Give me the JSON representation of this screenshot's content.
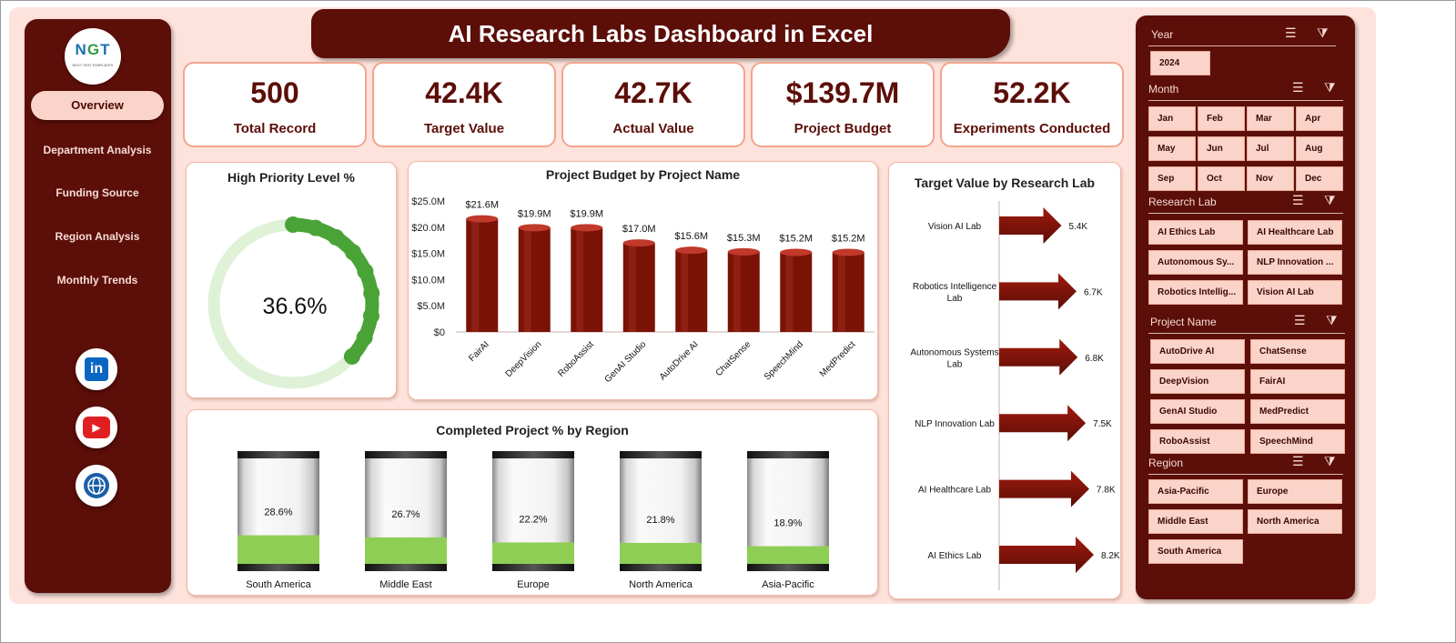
{
  "title": "AI Research Labs Dashboard in Excel",
  "logo": {
    "text_a": "N",
    "text_b": "G",
    "text_c": "T",
    "subtitle": "NEXT GEN TEMPLATES"
  },
  "nav": {
    "items": [
      {
        "label": "Overview",
        "active": true
      },
      {
        "label": "Department Analysis"
      },
      {
        "label": "Funding Source"
      },
      {
        "label": "Region Analysis"
      },
      {
        "label": "Monthly Trends"
      }
    ],
    "social": [
      {
        "name": "linkedin-icon",
        "glyph": "in",
        "color": "#0a66c2"
      },
      {
        "name": "youtube-icon",
        "glyph": "▶",
        "color": "#e02020"
      },
      {
        "name": "website-icon",
        "glyph": "🌐",
        "color": "#1a5fa8"
      }
    ]
  },
  "kpis": [
    {
      "value": "500",
      "label": "Total Record"
    },
    {
      "value": "42.4K",
      "label": "Target Value"
    },
    {
      "value": "42.7K",
      "label": "Actual Value"
    },
    {
      "value": "$139.7M",
      "label": "Project Budget"
    },
    {
      "value": "52.2K",
      "label": "Experiments Conducted"
    }
  ],
  "donut": {
    "title": "High Priority Level %",
    "value_label": "36.6%",
    "fraction": 0.366
  },
  "chart_data": [
    {
      "type": "bar",
      "title": "Project Budget by Project Name",
      "categories": [
        "FairAI",
        "DeepVision",
        "RoboAssist",
        "GenAI Studio",
        "AutoDrive AI",
        "ChatSense",
        "SpeechMind",
        "MedPredict"
      ],
      "values": [
        21.6,
        19.9,
        19.9,
        17.0,
        15.6,
        15.3,
        15.2,
        15.2
      ],
      "data_labels": [
        "$21.6M",
        "$19.9M",
        "$19.9M",
        "$17.0M",
        "$15.6M",
        "$15.3M",
        "$15.2M",
        "$15.2M"
      ],
      "ylim": [
        0,
        25
      ],
      "yticks": [
        "$0",
        "$5.0M",
        "$10.0M",
        "$15.0M",
        "$20.0M",
        "$25.0M"
      ],
      "ylabel": "",
      "xlabel": ""
    },
    {
      "type": "bar",
      "orientation": "horizontal",
      "title": "Target Value by Research Lab",
      "categories": [
        "Vision AI Lab",
        "Robotics Intelligence Lab",
        "Autonomous Systems Lab",
        "NLP Innovation Lab",
        "AI Healthcare Lab",
        "AI Ethics Lab"
      ],
      "category_lines": [
        [
          "Vision AI Lab"
        ],
        [
          "Robotics Intelligence",
          "Lab"
        ],
        [
          "Autonomous Systems",
          "Lab"
        ],
        [
          "NLP Innovation Lab"
        ],
        [
          "AI Healthcare Lab"
        ],
        [
          "AI Ethics Lab"
        ]
      ],
      "values": [
        5.4,
        6.7,
        6.8,
        7.5,
        7.8,
        8.2
      ],
      "data_labels": [
        "5.4K",
        "6.7K",
        "6.8K",
        "7.5K",
        "7.8K",
        "8.2K"
      ],
      "xlim": [
        0,
        8.2
      ]
    },
    {
      "type": "bar",
      "title": "Completed Project % by Region",
      "categories": [
        "South America",
        "Middle East",
        "Europe",
        "North America",
        "Asia-Pacific"
      ],
      "values": [
        28.6,
        26.7,
        22.2,
        21.8,
        18.9
      ],
      "data_labels": [
        "28.6%",
        "26.7%",
        "22.2%",
        "21.8%",
        "18.9%"
      ],
      "ylim": [
        0,
        100
      ]
    }
  ],
  "slicers": {
    "year": {
      "title": "Year",
      "items": [
        "2024"
      ]
    },
    "month": {
      "title": "Month",
      "items": [
        "Jan",
        "Feb",
        "Mar",
        "Apr",
        "May",
        "Jun",
        "Jul",
        "Aug",
        "Sep",
        "Oct",
        "Nov",
        "Dec"
      ]
    },
    "lab": {
      "title": "Research Lab",
      "items": [
        "AI Ethics Lab",
        "AI Healthcare Lab",
        "Autonomous Sy...",
        "NLP Innovation ...",
        "Robotics Intellig...",
        "Vision AI Lab"
      ]
    },
    "project": {
      "title": "Project Name",
      "items": [
        "AutoDrive AI",
        "ChatSense",
        "DeepVision",
        "FairAI",
        "GenAI Studio",
        "MedPredict",
        "RoboAssist",
        "SpeechMind"
      ]
    },
    "region": {
      "title": "Region",
      "items": [
        "Asia-Pacific",
        "Europe",
        "Middle East",
        "North America",
        "South America"
      ]
    }
  },
  "colors": {
    "maroon": "#5c0e08",
    "bar": "#7a1206",
    "green": "#4aa336",
    "green_light": "#dff2d8",
    "region_fill": "#8fce55"
  }
}
